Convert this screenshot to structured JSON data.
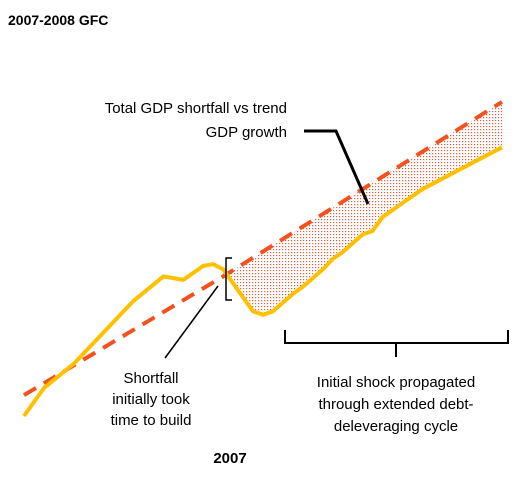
{
  "chart_data": {
    "type": "line",
    "title": "2007-2008 GFC",
    "xlabel": "",
    "ylabel": "",
    "x_tick_labels": [
      "2007"
    ],
    "x_range": [
      0,
      48
    ],
    "y_range": [
      0,
      100
    ],
    "grid": false,
    "legend": "none",
    "series": [
      {
        "role": "actual-gdp",
        "color": "#FFC000",
        "style": "solid",
        "x": [
          0,
          2,
          5,
          8,
          11,
          14,
          16,
          18,
          19,
          20,
          21,
          22,
          23,
          24,
          25,
          27,
          28,
          30,
          31,
          32,
          34,
          35,
          36,
          38,
          40,
          42,
          44,
          46,
          48
        ],
        "y": [
          2,
          10,
          17,
          26,
          35,
          42,
          41,
          45,
          45.5,
          44,
          40,
          36,
          32,
          31,
          32,
          37,
          39,
          44,
          47,
          49,
          54,
          55,
          59,
          63,
          67,
          70,
          73,
          76,
          79
        ]
      },
      {
        "role": "trend-gdp",
        "color": "#F4511E",
        "style": "dashed",
        "x": [
          0,
          20,
          48
        ],
        "y": [
          8,
          42,
          92
        ]
      }
    ],
    "annotations": [
      {
        "text_lines": [
          "Total GDP shortfall vs trend",
          "GDP growth"
        ]
      },
      {
        "text_lines": [
          "Shortfall",
          "initially took",
          "time to build"
        ]
      },
      {
        "text_lines": [
          "Initial shock propagated",
          "through extended debt-",
          "deleveraging cycle"
        ]
      }
    ],
    "colors": {
      "actual": "#FFC000",
      "trend": "#F4511E",
      "shortfall_fill": "#E06040",
      "annotation_line": "#000000"
    }
  }
}
